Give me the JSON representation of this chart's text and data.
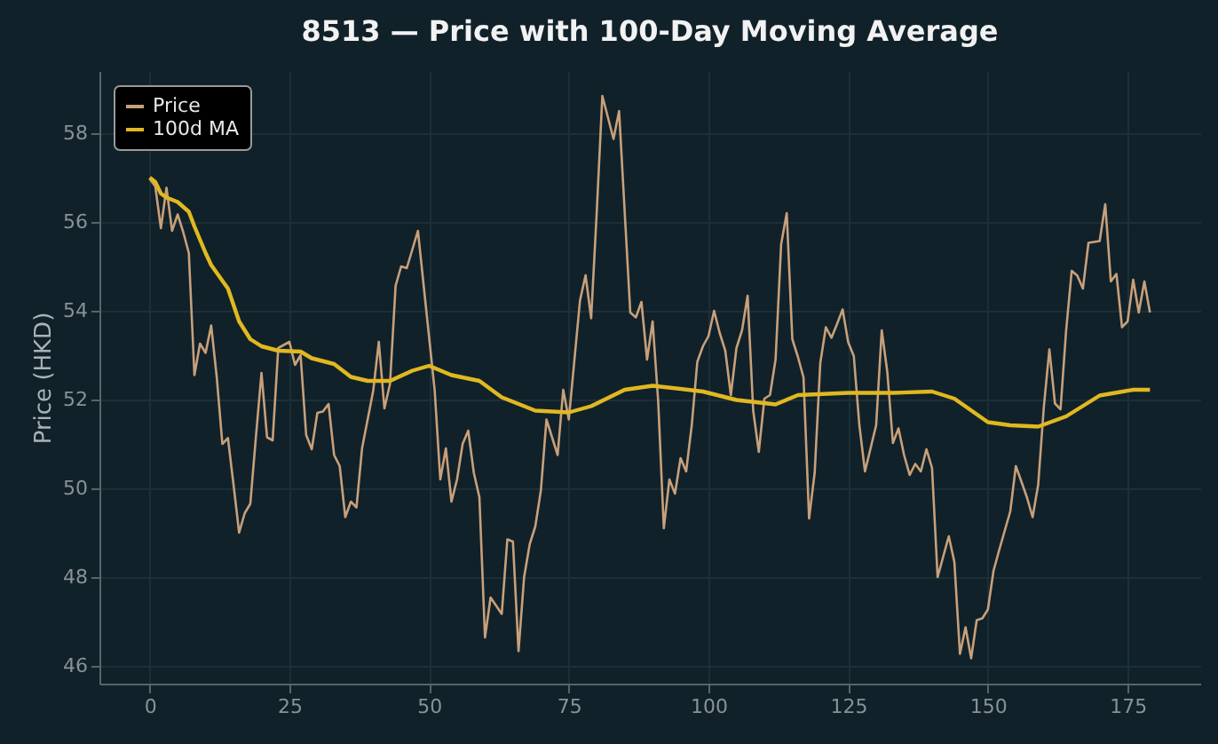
{
  "chart_data": {
    "type": "line",
    "title": "8513 — Price with 100-Day Moving Average",
    "ylabel": "Price (HKD)",
    "xlim": [
      -9,
      188
    ],
    "ylim": [
      45.6,
      59.4
    ],
    "xticks": [
      0,
      25,
      50,
      75,
      100,
      125,
      150,
      175
    ],
    "yticks": [
      46,
      48,
      50,
      52,
      54,
      56,
      58
    ],
    "grid": true,
    "legend": "top left",
    "marker": "none",
    "line_style": "solid",
    "series": [
      {
        "name": "Price",
        "color": "#c8a07a",
        "x": [
          0,
          1,
          2,
          3,
          4,
          5,
          6,
          7,
          8,
          9,
          10,
          11,
          12,
          13,
          14,
          15,
          16,
          17,
          18,
          19,
          20,
          21,
          22,
          23,
          25,
          26,
          27,
          28,
          29,
          30,
          31,
          32,
          33,
          34,
          35,
          36,
          37,
          38,
          40,
          41,
          42,
          43,
          44,
          45,
          46,
          48,
          50,
          51,
          52,
          53,
          54,
          55,
          56,
          57,
          58,
          59,
          60,
          61,
          63,
          64,
          65,
          66,
          67,
          68,
          69,
          70,
          71,
          73,
          74,
          75,
          77,
          78,
          79,
          80,
          81,
          83,
          84,
          86,
          87,
          88,
          89,
          90,
          91,
          92,
          93,
          94,
          95,
          96,
          97,
          98,
          99,
          100,
          101,
          102,
          103,
          104,
          105,
          106,
          107,
          108,
          109,
          110,
          111,
          112,
          113,
          114,
          115,
          116,
          117,
          118,
          119,
          120,
          121,
          122,
          123,
          124,
          125,
          126,
          127,
          128,
          130,
          131,
          132,
          133,
          134,
          135,
          136,
          137,
          138,
          139,
          140,
          141,
          143,
          144,
          145,
          146,
          147,
          148,
          149,
          150,
          151,
          152,
          154,
          155,
          156,
          157,
          158,
          159,
          160,
          161,
          162,
          163,
          164,
          165,
          166,
          167,
          168,
          170,
          171,
          172,
          173,
          174,
          175,
          176,
          177,
          178,
          179
        ],
        "values": [
          56.97,
          56.8,
          55.86,
          56.77,
          55.8,
          56.17,
          55.77,
          55.3,
          52.55,
          53.26,
          53.05,
          53.67,
          52.5,
          51.0,
          51.13,
          50.08,
          49.0,
          49.44,
          49.65,
          51.15,
          52.6,
          51.15,
          51.08,
          53.16,
          53.3,
          52.78,
          53.0,
          51.2,
          50.88,
          51.7,
          51.73,
          51.9,
          50.75,
          50.5,
          49.35,
          49.7,
          49.57,
          50.9,
          52.2,
          53.3,
          51.8,
          52.35,
          54.56,
          55.0,
          54.96,
          55.8,
          53.4,
          52.2,
          50.2,
          50.9,
          49.7,
          50.2,
          51.0,
          51.3,
          50.35,
          49.8,
          46.64,
          47.54,
          47.17,
          48.85,
          48.8,
          46.33,
          48.0,
          48.74,
          49.14,
          49.95,
          51.55,
          50.75,
          52.22,
          51.55,
          54.23,
          54.8,
          53.83,
          56.23,
          58.84,
          57.87,
          58.5,
          53.96,
          53.85,
          54.2,
          52.9,
          53.76,
          51.95,
          49.1,
          50.2,
          49.88,
          50.68,
          50.38,
          51.42,
          52.85,
          53.2,
          53.43,
          54.0,
          53.5,
          53.1,
          52.1,
          53.16,
          53.56,
          54.34,
          51.75,
          50.82,
          52.02,
          52.1,
          52.9,
          55.5,
          56.2,
          53.36,
          52.96,
          52.5,
          49.32,
          50.35,
          52.82,
          53.63,
          53.39,
          53.7,
          54.03,
          53.29,
          52.98,
          51.42,
          50.38,
          51.42,
          53.56,
          52.62,
          51.02,
          51.35,
          50.75,
          50.3,
          50.55,
          50.38,
          50.88,
          50.46,
          48.0,
          48.92,
          48.34,
          46.27,
          46.87,
          46.17,
          47.03,
          47.07,
          47.27,
          48.14,
          48.6,
          49.48,
          50.5,
          50.15,
          49.79,
          49.35,
          50.08,
          51.82,
          53.13,
          51.91,
          51.78,
          53.56,
          54.9,
          54.79,
          54.5,
          55.53,
          55.57,
          56.4,
          54.66,
          54.83,
          53.63,
          53.76,
          54.7,
          53.96,
          54.66,
          53.96
        ]
      },
      {
        "name": "100d MA",
        "color": "#e0b820",
        "x": [
          0,
          1,
          2,
          3,
          5,
          7,
          8,
          10,
          11,
          14,
          16,
          18,
          20,
          23,
          27,
          29,
          33,
          36,
          39,
          43,
          47,
          50,
          54,
          59,
          63,
          69,
          75,
          79,
          85,
          90,
          99,
          105,
          112,
          116,
          125,
          133,
          140,
          144,
          150,
          154,
          159,
          164,
          170,
          176,
          179
        ],
        "values": [
          57.0,
          56.9,
          56.64,
          56.55,
          56.45,
          56.23,
          55.9,
          55.3,
          55.03,
          54.5,
          53.76,
          53.36,
          53.2,
          53.1,
          53.08,
          52.93,
          52.8,
          52.51,
          52.42,
          52.42,
          52.65,
          52.76,
          52.55,
          52.42,
          52.05,
          51.75,
          51.71,
          51.85,
          52.22,
          52.31,
          52.18,
          51.99,
          51.89,
          52.1,
          52.15,
          52.15,
          52.18,
          52.02,
          51.49,
          51.42,
          51.39,
          51.62,
          52.09,
          52.22,
          52.22
        ]
      }
    ]
  }
}
